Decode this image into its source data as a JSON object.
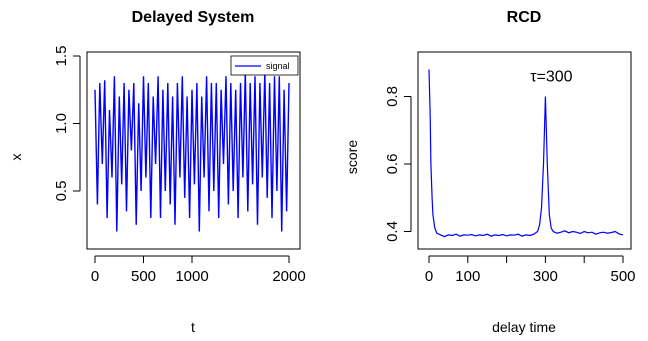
{
  "chart_data": [
    {
      "type": "line",
      "title": "Delayed System",
      "xlabel": "t",
      "ylabel": "x",
      "xlim": [
        0,
        2000
      ],
      "ylim": [
        0.1,
        1.5
      ],
      "xticks": [
        0,
        500,
        1000,
        2000
      ],
      "xtick_labels": [
        "0",
        "500",
        "1000",
        "2000"
      ],
      "yticks": [
        0.5,
        1.0,
        1.5
      ],
      "ytick_labels": [
        "0.5",
        "1.0",
        "1.5"
      ],
      "grid": false,
      "legend": {
        "position": "top-right",
        "entries": [
          "signal"
        ]
      },
      "series": [
        {
          "name": "signal",
          "color": "#0000ff",
          "x": [
            0,
            25,
            50,
            75,
            100,
            125,
            150,
            175,
            200,
            225,
            250,
            275,
            300,
            325,
            350,
            375,
            400,
            425,
            450,
            475,
            500,
            525,
            550,
            575,
            600,
            625,
            650,
            675,
            700,
            725,
            750,
            775,
            800,
            825,
            850,
            875,
            900,
            925,
            950,
            975,
            1000,
            1025,
            1050,
            1075,
            1100,
            1125,
            1150,
            1175,
            1200,
            1225,
            1250,
            1275,
            1300,
            1325,
            1350,
            1375,
            1400,
            1425,
            1450,
            1475,
            1500,
            1525,
            1550,
            1575,
            1600,
            1625,
            1650,
            1675,
            1700,
            1725,
            1750,
            1775,
            1800,
            1825,
            1850,
            1875,
            1900,
            1925,
            1950,
            1975,
            2000
          ],
          "y": [
            1.25,
            0.4,
            1.3,
            0.7,
            1.32,
            0.3,
            1.1,
            0.6,
            1.35,
            0.2,
            1.2,
            0.55,
            1.3,
            0.35,
            1.25,
            0.8,
            1.3,
            0.25,
            1.15,
            0.5,
            1.35,
            0.6,
            1.3,
            0.3,
            1.2,
            0.7,
            1.35,
            0.3,
            1.25,
            0.5,
            1.3,
            0.4,
            1.2,
            0.25,
            1.3,
            0.6,
            1.35,
            0.45,
            1.2,
            0.3,
            1.25,
            0.55,
            1.3,
            0.2,
            1.2,
            0.6,
            1.35,
            0.35,
            1.3,
            0.5,
            1.3,
            0.3,
            1.25,
            0.7,
            1.35,
            0.4,
            1.3,
            0.5,
            1.25,
            0.3,
            1.3,
            0.6,
            1.38,
            0.35,
            1.3,
            0.55,
            1.35,
            0.25,
            1.3,
            0.6,
            1.38,
            0.45,
            1.3,
            0.3,
            1.35,
            0.5,
            1.35,
            0.2,
            1.25,
            0.35,
            1.3
          ]
        }
      ]
    },
    {
      "type": "line",
      "title": "RCD",
      "xlabel": "delay time",
      "ylabel": "score",
      "xlim": [
        0,
        500
      ],
      "ylim": [
        0.36,
        0.92
      ],
      "xticks": [
        0,
        100,
        300,
        500
      ],
      "xtick_labels": [
        "0",
        "100",
        "300",
        "500"
      ],
      "minor_xticks": [
        200,
        400
      ],
      "yticks": [
        0.4,
        0.6,
        0.8
      ],
      "ytick_labels": [
        "0.4",
        "0.6",
        "0.8"
      ],
      "grid": false,
      "annotations": [
        {
          "text": "τ=300",
          "x": 300,
          "y": 0.845
        }
      ],
      "series": [
        {
          "color": "#0000ff",
          "x": [
            0,
            3,
            5,
            8,
            10,
            15,
            20,
            30,
            40,
            50,
            60,
            70,
            80,
            90,
            100,
            110,
            120,
            130,
            140,
            150,
            160,
            170,
            180,
            190,
            200,
            210,
            220,
            230,
            240,
            250,
            260,
            270,
            280,
            285,
            290,
            295,
            300,
            305,
            310,
            315,
            320,
            330,
            340,
            350,
            360,
            370,
            380,
            390,
            400,
            410,
            420,
            430,
            440,
            450,
            460,
            470,
            480,
            490,
            500
          ],
          "y": [
            0.88,
            0.74,
            0.6,
            0.5,
            0.45,
            0.41,
            0.395,
            0.39,
            0.385,
            0.39,
            0.388,
            0.392,
            0.386,
            0.39,
            0.389,
            0.391,
            0.387,
            0.39,
            0.388,
            0.392,
            0.386,
            0.39,
            0.388,
            0.391,
            0.387,
            0.39,
            0.389,
            0.392,
            0.386,
            0.39,
            0.388,
            0.392,
            0.4,
            0.42,
            0.47,
            0.6,
            0.8,
            0.6,
            0.45,
            0.41,
            0.4,
            0.395,
            0.398,
            0.402,
            0.396,
            0.4,
            0.398,
            0.394,
            0.4,
            0.396,
            0.398,
            0.392,
            0.396,
            0.398,
            0.395,
            0.397,
            0.4,
            0.393,
            0.39
          ]
        }
      ]
    }
  ]
}
